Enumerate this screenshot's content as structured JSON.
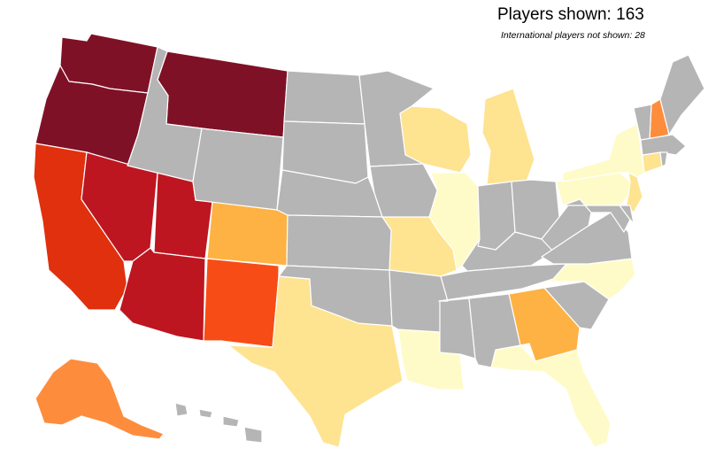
{
  "header": {
    "players_shown_label": "Players shown:",
    "players_shown_count": "163",
    "international_label": "International players not shown:",
    "international_count": "28"
  },
  "palette": {
    "very_high": "#7f1126",
    "high": "#bd1620",
    "upper_mid": "#e0300e",
    "mid_high": "#f84c16",
    "mid": "#fd8d3c",
    "mid_low": "#feb243",
    "low": "#fee390",
    "very_low": "#fefbc8",
    "none": "#b5b5b5"
  },
  "states": [
    {
      "name": "Washington",
      "level": "very_high"
    },
    {
      "name": "Oregon",
      "level": "very_high"
    },
    {
      "name": "Montana",
      "level": "very_high"
    },
    {
      "name": "California",
      "level": "upper_mid"
    },
    {
      "name": "Nevada",
      "level": "high"
    },
    {
      "name": "Utah",
      "level": "high"
    },
    {
      "name": "Arizona",
      "level": "high"
    },
    {
      "name": "New Mexico",
      "level": "mid_high"
    },
    {
      "name": "Colorado",
      "level": "mid_low"
    },
    {
      "name": "Alaska",
      "level": "mid"
    },
    {
      "name": "New Hampshire",
      "level": "mid"
    },
    {
      "name": "Georgia",
      "level": "mid_low"
    },
    {
      "name": "Texas",
      "level": "low"
    },
    {
      "name": "Missouri",
      "level": "low"
    },
    {
      "name": "Wisconsin",
      "level": "low"
    },
    {
      "name": "Michigan",
      "level": "low"
    },
    {
      "name": "Connecticut",
      "level": "low"
    },
    {
      "name": "New Jersey",
      "level": "low"
    },
    {
      "name": "Illinois",
      "level": "very_low"
    },
    {
      "name": "Louisiana",
      "level": "very_low"
    },
    {
      "name": "Florida",
      "level": "very_low"
    },
    {
      "name": "North Carolina",
      "level": "very_low"
    },
    {
      "name": "Pennsylvania",
      "level": "very_low"
    },
    {
      "name": "New York",
      "level": "very_low"
    },
    {
      "name": "Idaho",
      "level": "none"
    },
    {
      "name": "Wyoming",
      "level": "none"
    },
    {
      "name": "North Dakota",
      "level": "none"
    },
    {
      "name": "South Dakota",
      "level": "none"
    },
    {
      "name": "Nebraska",
      "level": "none"
    },
    {
      "name": "Kansas",
      "level": "none"
    },
    {
      "name": "Oklahoma",
      "level": "none"
    },
    {
      "name": "Minnesota",
      "level": "none"
    },
    {
      "name": "Iowa",
      "level": "none"
    },
    {
      "name": "Arkansas",
      "level": "none"
    },
    {
      "name": "Mississippi",
      "level": "none"
    },
    {
      "name": "Alabama",
      "level": "none"
    },
    {
      "name": "Tennessee",
      "level": "none"
    },
    {
      "name": "Kentucky",
      "level": "none"
    },
    {
      "name": "Indiana",
      "level": "none"
    },
    {
      "name": "Ohio",
      "level": "none"
    },
    {
      "name": "West Virginia",
      "level": "none"
    },
    {
      "name": "Virginia",
      "level": "none"
    },
    {
      "name": "Maryland",
      "level": "none"
    },
    {
      "name": "Delaware",
      "level": "none"
    },
    {
      "name": "South Carolina",
      "level": "none"
    },
    {
      "name": "Maine",
      "level": "none"
    },
    {
      "name": "Vermont",
      "level": "none"
    },
    {
      "name": "Massachusetts",
      "level": "none"
    },
    {
      "name": "Rhode Island",
      "level": "none"
    },
    {
      "name": "Hawaii",
      "level": "none"
    }
  ]
}
